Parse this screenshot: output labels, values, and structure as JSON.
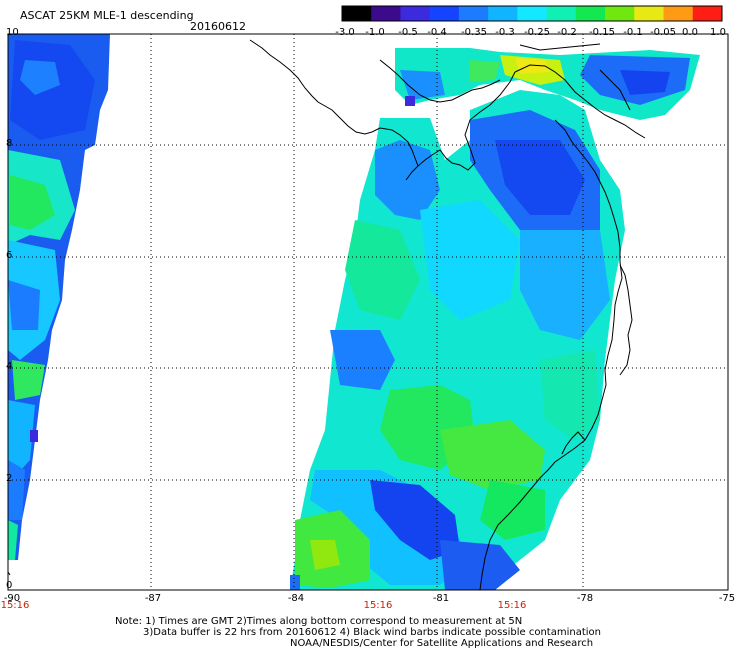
{
  "header": {
    "title": "ASCAT 25KM MLE-1 descending",
    "date": "20160612"
  },
  "colorbar": {
    "tick_labels": [
      "-3.0",
      "-1.0",
      "-0.5",
      "-0.4",
      "-0.35",
      "-0.3",
      "-0.25",
      "-0.2",
      "-0.15",
      "-0.1",
      "-0.05",
      "0.0",
      "1.0"
    ],
    "colors": [
      "#000000",
      "#3c0a8c",
      "#3c2adf",
      "#1444ff",
      "#1c7cff",
      "#10b4ff",
      "#12e8ff",
      "#10f0b4",
      "#14e850",
      "#70e810",
      "#e8e814",
      "#ff9a14",
      "#ff1e14"
    ]
  },
  "axes": {
    "lat_labels": [
      "10",
      "8",
      "6",
      "4",
      "2",
      "0"
    ],
    "lon_labels": [
      "-90",
      "-87",
      "-84",
      "-81",
      "-78",
      "-75"
    ],
    "time_labels": [
      "15:16",
      "15:16",
      "15:16"
    ]
  },
  "notes": {
    "line1": "Note: 1) Times are GMT 2)Times along bottom correspond to measurement at 5N",
    "line2": "3)Data buffer is 22 hrs from 20160612 4) Black wind barbs indicate possible contamination",
    "line3": "NOAA/NESDIS/Center for Satellite Applications and Research"
  }
}
